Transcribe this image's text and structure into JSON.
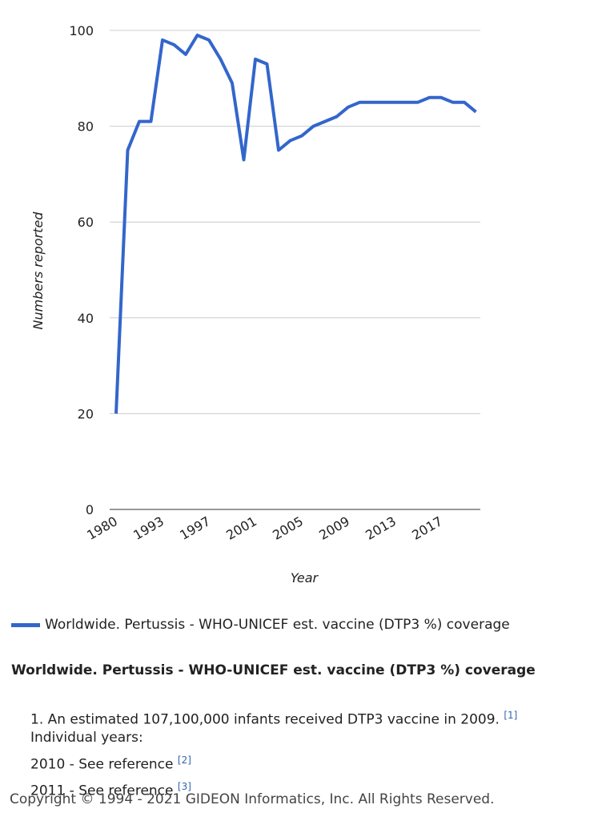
{
  "chart_data": {
    "type": "line",
    "y_label": "Numbers reported",
    "x_label": "Year",
    "categories": [
      "1980",
      null,
      null,
      null,
      "1993",
      null,
      null,
      null,
      "1997",
      null,
      null,
      null,
      "2001",
      null,
      null,
      null,
      "2005",
      null,
      null,
      null,
      "2009",
      null,
      null,
      null,
      "2013",
      null,
      null,
      null,
      "2017",
      null,
      null,
      null
    ],
    "series": [
      {
        "name": "Worldwide. Pertussis - WHO-UNICEF est. vaccine (DTP3 %) coverage",
        "color": "#3366cc",
        "values": [
          20,
          75,
          81,
          81,
          98,
          97,
          95,
          99,
          98,
          94,
          89,
          73,
          94,
          93,
          75,
          77,
          78,
          80,
          81,
          82,
          84,
          85,
          85,
          85,
          85,
          85,
          85,
          86,
          86,
          85,
          85,
          83
        ]
      }
    ],
    "ylim": [
      0,
      100
    ],
    "yticks": [
      0,
      20,
      40,
      60,
      80,
      100
    ],
    "grid": true
  },
  "section_title": "Worldwide. Pertussis - WHO-UNICEF est. vaccine (DTP3 %) coverage",
  "notes": [
    {
      "text": "1. An estimated 107,100,000 infants received DTP3 vaccine in 2009.",
      "ref": "[1]",
      "sub": "Individual years:"
    },
    {
      "text": "2010 - See reference",
      "ref": "[2]"
    },
    {
      "text": "2011 - See reference",
      "ref": "[3]"
    }
  ],
  "copyright": "Copyright © 1994 - 2021 GIDEON Informatics, Inc. All Rights Reserved."
}
